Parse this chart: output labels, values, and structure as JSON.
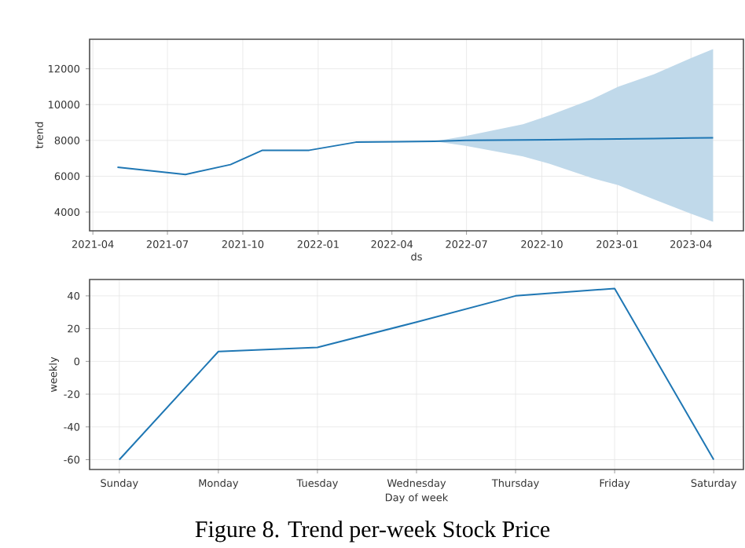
{
  "chart_data": [
    {
      "type": "line",
      "xlabel": "ds",
      "ylabel": "trend",
      "grid": true,
      "xlim": [
        "2021-03-28",
        "2023-06-04"
      ],
      "ylim": [
        2950,
        13650
      ],
      "xticks": [
        "2021-04",
        "2021-07",
        "2021-10",
        "2022-01",
        "2022-04",
        "2022-07",
        "2022-10",
        "2023-01",
        "2023-04"
      ],
      "yticks": [
        4000,
        6000,
        8000,
        10000,
        12000
      ],
      "series": [
        {
          "color": "#1f77b4",
          "x": [
            "2021-05-01",
            "2021-07-23",
            "2021-09-16",
            "2021-10-25",
            "2021-12-21",
            "2022-02-16",
            "2022-05-23",
            "2022-06-30",
            "2022-09-08",
            "2022-10-10",
            "2022-12-01",
            "2023-01-02",
            "2023-02-15",
            "2023-04-01",
            "2023-04-28"
          ],
          "values": [
            6500,
            6100,
            6650,
            7450,
            7450,
            7900,
            7950,
            8000,
            8030,
            8040,
            8070,
            8080,
            8100,
            8130,
            8150
          ],
          "lower": [
            null,
            null,
            null,
            null,
            null,
            null,
            7950,
            7700,
            7100,
            6700,
            5900,
            5500,
            4700,
            3900,
            3450
          ],
          "upper": [
            null,
            null,
            null,
            null,
            null,
            null,
            7950,
            8250,
            8900,
            9400,
            10300,
            11000,
            11700,
            12600,
            13100
          ]
        }
      ]
    },
    {
      "type": "line",
      "xlabel": "Day of week",
      "ylabel": "weekly",
      "grid": true,
      "categories": [
        "Sunday",
        "Monday",
        "Tuesday",
        "Wednesday",
        "Thursday",
        "Friday",
        "Saturday"
      ],
      "ylim": [
        -66,
        50
      ],
      "yticks": [
        -60,
        -40,
        -20,
        0,
        20,
        40
      ],
      "series": [
        {
          "color": "#1f77b4",
          "values": [
            -60,
            6,
            8.5,
            24,
            40,
            44.5,
            -60
          ]
        }
      ],
      "annotations": [
        "Figure 8. Trend per-week Stock Price"
      ]
    }
  ]
}
